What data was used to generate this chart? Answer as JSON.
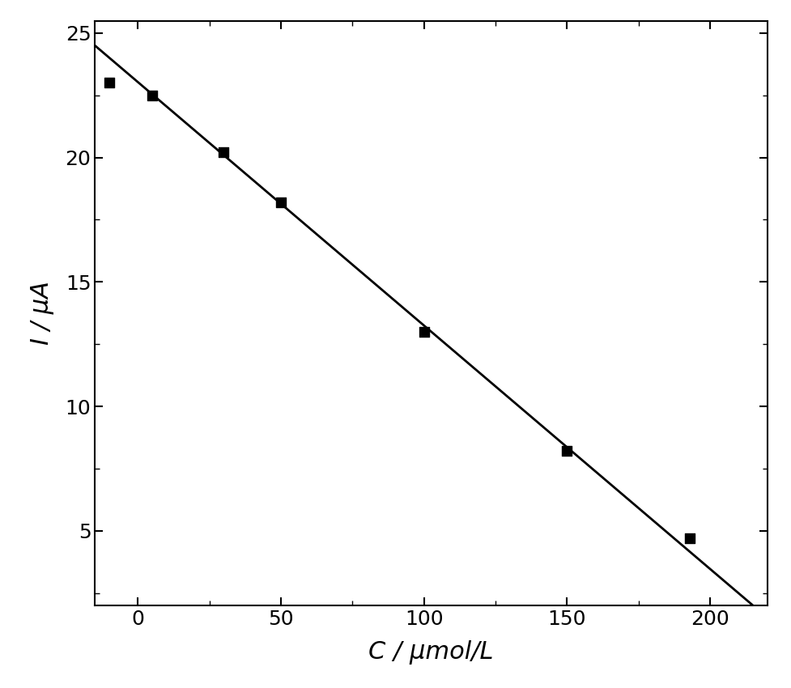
{
  "scatter_x": [
    -10,
    5,
    30,
    50,
    100,
    150,
    193
  ],
  "scatter_y": [
    23.0,
    22.5,
    20.2,
    18.2,
    13.0,
    8.2,
    4.7
  ],
  "line_x": [
    -15,
    215
  ],
  "line_y": [
    24.5,
    2.0
  ],
  "xlim": [
    -15,
    220
  ],
  "ylim": [
    2.0,
    25.5
  ],
  "xticks": [
    0,
    50,
    100,
    150,
    200
  ],
  "yticks": [
    5,
    10,
    15,
    20,
    25
  ],
  "xlabel": "C / μmol/L",
  "ylabel": "I / μA",
  "scatter_color": "#000000",
  "line_color": "#000000",
  "marker": "s",
  "marker_size": 8,
  "line_width": 2.0,
  "xlabel_fontsize": 22,
  "ylabel_fontsize": 22,
  "tick_fontsize": 18,
  "background_color": "#ffffff"
}
